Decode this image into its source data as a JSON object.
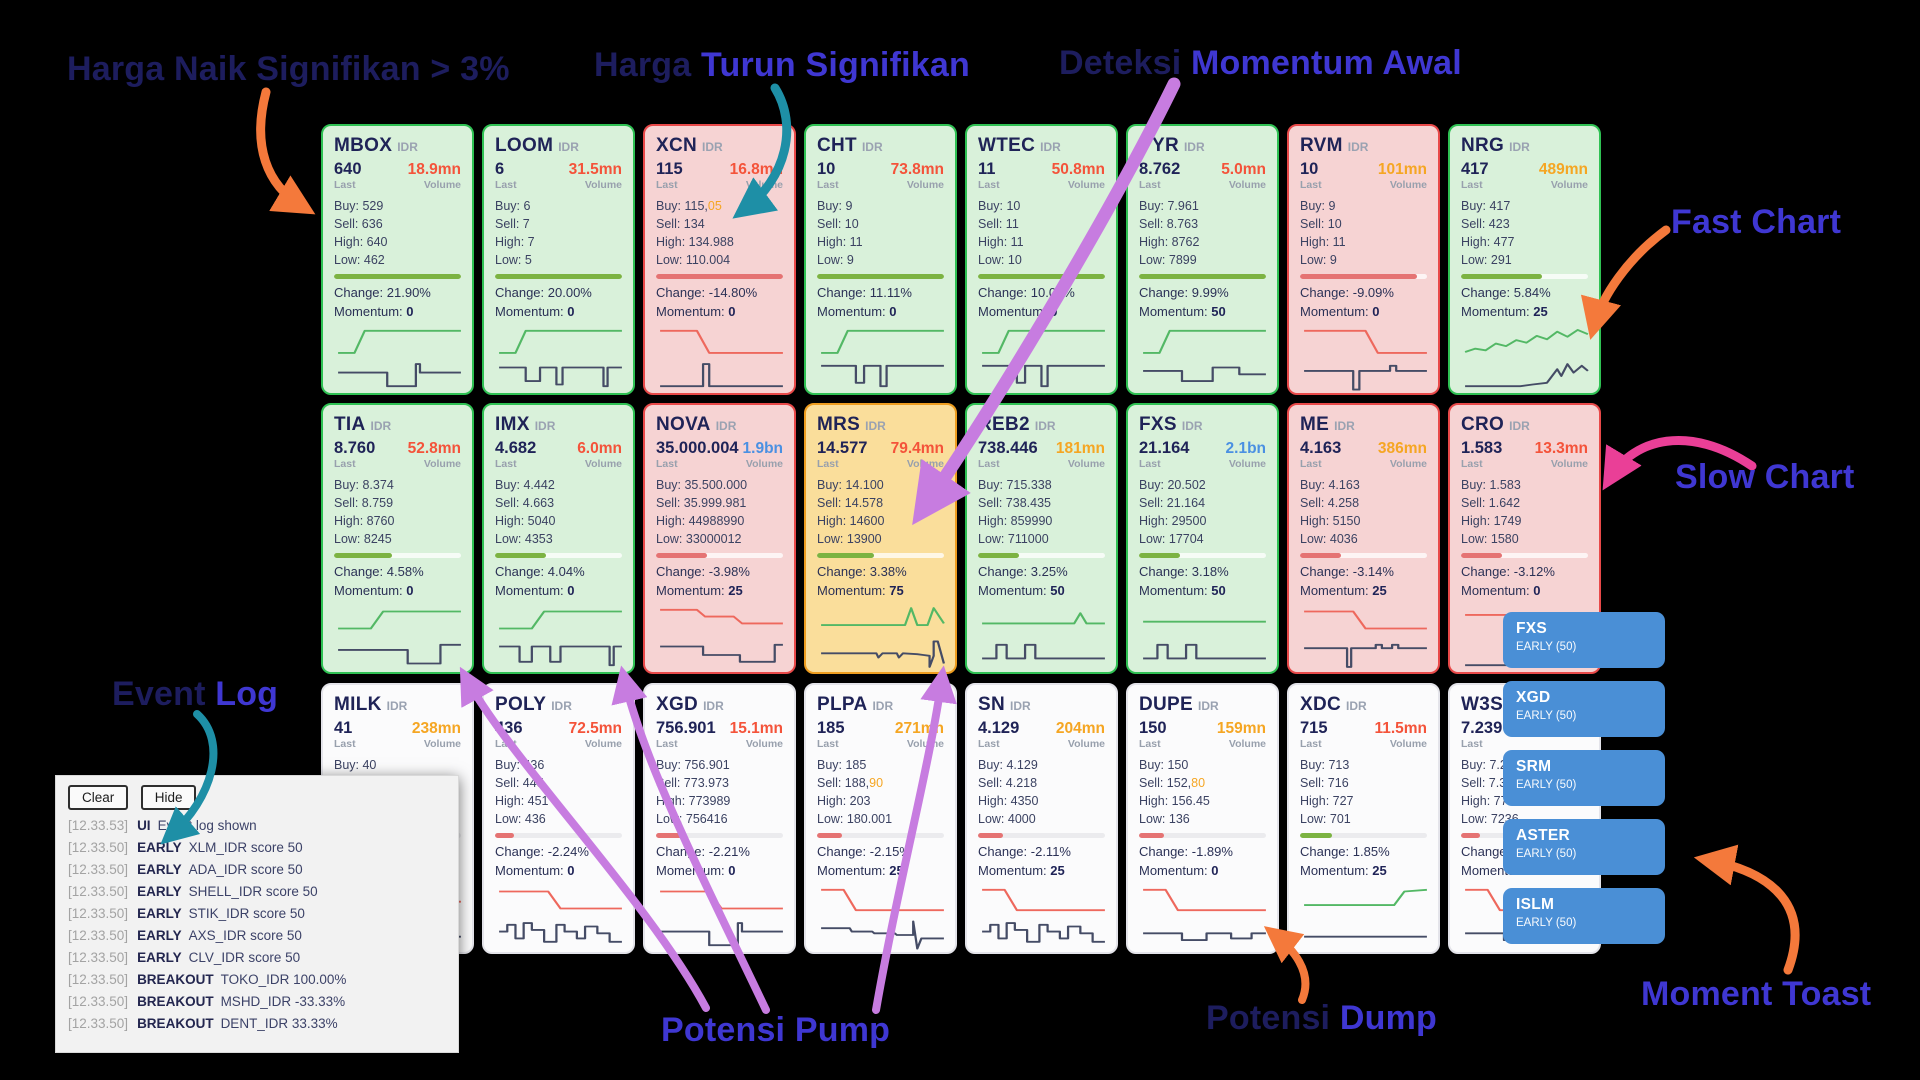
{
  "colors": {
    "background": "#000000",
    "card_green_border": "#2fc153",
    "card_green_bg": "#d9f1da",
    "card_red_border": "#e84949",
    "card_red_bg": "#f6d3d3",
    "card_yellow_border": "#ee9d1f",
    "card_yellow_bg": "#fade9b",
    "volume_red": "#f4533a",
    "volume_orange": "#f5a623",
    "volume_blue": "#4a90e2",
    "bar_green": "#7cb342",
    "bar_red": "#e57373",
    "toast_blue": "#4a8fd6",
    "ink_navy": "#1f2357",
    "annot_dark": "#1d1d5e",
    "annot_indigo": "#3f37d2"
  },
  "labels": {
    "currency": "IDR",
    "last": "Last",
    "volume": "Volume",
    "buy": "Buy:",
    "sell": "Sell:",
    "high": "High:",
    "low": "Low:",
    "momentum": "Momentum:"
  },
  "cards": [
    {
      "ticker": "MBOX",
      "last": "640",
      "volume": "18.9mn",
      "volume_color": "red",
      "buy": "529",
      "sell": "636",
      "high": "640",
      "low": "462",
      "bar_color": "green",
      "bar_pct": 100,
      "change": "Change: 21.90%",
      "momentum": "0",
      "tone": "green",
      "spark_top": "rampUp",
      "spark_bottom": "gStepDU"
    },
    {
      "ticker": "LOOM",
      "last": "6",
      "volume": "31.5mn",
      "volume_color": "red",
      "buy": "6",
      "sell": "7",
      "high": "7",
      "low": "5",
      "bar_color": "green",
      "bar_pct": 100,
      "change": "Change: 20.00%",
      "momentum": "0",
      "tone": "green",
      "spark_top": "rampUp",
      "spark_bottom": "gDoubleDip"
    },
    {
      "ticker": "XCN",
      "last": "115",
      "volume": "16.8mn",
      "volume_color": "red",
      "buy": "115,",
      "buy_suffix": "05",
      "sell": "134",
      "high": "134.988",
      "low": "110.004",
      "bar_color": "red",
      "bar_pct": 100,
      "change": "Change: -14.80%",
      "momentum": "0",
      "tone": "red",
      "spark_top": "dropHigh",
      "spark_bottom": "gSpikeUp"
    },
    {
      "ticker": "CHT",
      "last": "10",
      "volume": "73.8mn",
      "volume_color": "red",
      "buy": "9",
      "sell": "10",
      "high": "11",
      "low": "9",
      "bar_color": "green",
      "bar_pct": 100,
      "change": "Change: 11.11%",
      "momentum": "0",
      "tone": "green",
      "spark_top": "rampUp",
      "spark_bottom": "gNotches"
    },
    {
      "ticker": "WTEC",
      "last": "11",
      "volume": "50.8mn",
      "volume_color": "red",
      "buy": "10",
      "sell": "11",
      "high": "11",
      "low": "10",
      "bar_color": "green",
      "bar_pct": 100,
      "change": "Change: 10.00%",
      "momentum": "0",
      "tone": "green",
      "spark_top": "rampUp",
      "spark_bottom": "gNotches"
    },
    {
      "ticker": "PYR",
      "last": "8.762",
      "volume": "5.0mn",
      "volume_color": "red",
      "buy": "7.961",
      "sell": "8.763",
      "high": "8762",
      "low": "7899",
      "bar_color": "green",
      "bar_pct": 100,
      "change": "Change: 9.99%",
      "momentum": "50",
      "tone": "green",
      "spark_top": "rampUp",
      "spark_bottom": "gSteps"
    },
    {
      "ticker": "RVM",
      "last": "10",
      "volume": "101mn",
      "volume_color": "orange",
      "buy": "9",
      "sell": "10",
      "high": "11",
      "low": "9",
      "bar_color": "red",
      "bar_pct": 92,
      "change": "Change: -9.09%",
      "momentum": "0",
      "tone": "red",
      "spark_top": "dropLate",
      "spark_bottom": "gSpikeDown"
    },
    {
      "ticker": "NRG",
      "last": "417",
      "volume": "489mn",
      "volume_color": "orange",
      "buy": "417",
      "sell": "423",
      "high": "477",
      "low": "291",
      "bar_color": "green",
      "bar_pct": 64,
      "change": "Change: 5.84%",
      "momentum": "25",
      "tone": "green",
      "spark_top": "squiggle",
      "spark_bottom": "gRiseTail"
    },
    {
      "ticker": "TIA",
      "last": "8.760",
      "volume": "52.8mn",
      "volume_color": "red",
      "buy": "8.374",
      "sell": "8.759",
      "high": "8760",
      "low": "8245",
      "bar_color": "green",
      "bar_pct": 46,
      "change": "Change: 4.58%",
      "momentum": "0",
      "tone": "green",
      "spark_top": "rampMid",
      "spark_bottom": "gStepDownEnd"
    },
    {
      "ticker": "IMX",
      "last": "4.682",
      "volume": "6.0mn",
      "volume_color": "red",
      "buy": "4.442",
      "sell": "4.663",
      "high": "5040",
      "low": "4353",
      "bar_color": "green",
      "bar_pct": 40,
      "change": "Change: 4.04%",
      "momentum": "0",
      "tone": "green",
      "spark_top": "rampMid",
      "spark_bottom": "gPulse2"
    },
    {
      "ticker": "NOVA",
      "last": "35.000.004",
      "volume": "1.9bn",
      "volume_color": "blue",
      "buy": "35.500.000",
      "sell": "35.999.981",
      "high": "44988990",
      "low": "33000012",
      "bar_color": "red",
      "bar_pct": 40,
      "change": "Change: -3.98%",
      "momentum": "25",
      "tone": "red",
      "spark_top": "stairsDown",
      "spark_bottom": "gStairs"
    },
    {
      "ticker": "MRS",
      "last": "14.577",
      "volume": "79.4mn",
      "volume_color": "red",
      "buy": "14.100",
      "sell": "14.578",
      "high": "14600",
      "low": "13900",
      "bar_color": "green",
      "bar_pct": 45,
      "change": "Change: 3.38%",
      "momentum": "75",
      "tone": "yellow",
      "spark_top": "flatSpikes2",
      "spark_bottom": "gTicksSpike"
    },
    {
      "ticker": "REB2",
      "last": "738.446",
      "volume": "181mn",
      "volume_color": "orange",
      "buy": "715.338",
      "sell": "738.435",
      "high": "859990",
      "low": "711000",
      "bar_color": "green",
      "bar_pct": 32,
      "change": "Change: 3.25%",
      "momentum": "50",
      "tone": "green",
      "spark_top": "flatSpike1",
      "spark_bottom": "gPulses"
    },
    {
      "ticker": "FXS",
      "last": "21.164",
      "volume": "2.1bn",
      "volume_color": "blue",
      "buy": "20.502",
      "sell": "21.164",
      "high": "29500",
      "low": "17704",
      "bar_color": "green",
      "bar_pct": 32,
      "change": "Change: 3.18%",
      "momentum": "50",
      "tone": "green",
      "spark_top": "flat",
      "spark_bottom": "gPulses"
    },
    {
      "ticker": "ME",
      "last": "4.163",
      "volume": "386mn",
      "volume_color": "orange",
      "buy": "4.163",
      "sell": "4.258",
      "high": "5150",
      "low": "4036",
      "bar_color": "red",
      "bar_pct": 32,
      "change": "Change: -3.14%",
      "momentum": "25",
      "tone": "red",
      "spark_top": "dropMid",
      "spark_bottom": "gSpikeDnPulse"
    },
    {
      "ticker": "CRO",
      "last": "1.583",
      "volume": "13.3mn",
      "volume_color": "red",
      "buy": "1.583",
      "sell": "1.642",
      "high": "1749",
      "low": "1580",
      "bar_color": "red",
      "bar_pct": 32,
      "change": "Change: -3.12%",
      "momentum": "0",
      "tone": "red",
      "spark_top": "dropSmallEnd",
      "spark_bottom": "gRiseTail"
    },
    {
      "ticker": "MILK",
      "last": "41",
      "volume": "238mn",
      "volume_color": "orange",
      "buy": "40",
      "sell": "",
      "high": "",
      "low": "",
      "bar_color": "red",
      "bar_pct": 0,
      "change": "",
      "momentum": "",
      "tone": "white",
      "spark_top": "flat",
      "spark_bottom": "gFlat"
    },
    {
      "ticker": "POLY",
      "last": "436",
      "volume": "72.5mn",
      "volume_color": "red",
      "buy": "436",
      "sell": "445",
      "high": "451",
      "low": "436",
      "bar_color": "red",
      "bar_pct": 15,
      "change": "Change: -2.24%",
      "momentum": "0",
      "tone": "white",
      "spark_top": "dropMid",
      "spark_bottom": "gCity"
    },
    {
      "ticker": "XGD",
      "last": "756.901",
      "volume": "15.1mn",
      "volume_color": "red",
      "buy": "756.901",
      "sell": "773.973",
      "high": "773989",
      "low": "756416",
      "bar_color": "red",
      "bar_pct": 22,
      "change": "Change: -2.21%",
      "momentum": "0",
      "tone": "white",
      "spark_top": "dropMid",
      "spark_bottom": "gStepDU"
    },
    {
      "ticker": "PLPA",
      "last": "185",
      "volume": "271mn",
      "volume_color": "orange",
      "buy": "185",
      "sell": "188,",
      "sell_suffix": "90",
      "high": "203",
      "low": "180.001",
      "bar_color": "red",
      "bar_pct": 20,
      "change": "Change: -2.15%",
      "momentum": "25",
      "tone": "white",
      "spark_top": "dropEarly",
      "spark_bottom": "gDescTicksSpike"
    },
    {
      "ticker": "SN",
      "last": "4.129",
      "volume": "204mn",
      "volume_color": "orange",
      "buy": "4.129",
      "sell": "4.218",
      "high": "4350",
      "low": "4000",
      "bar_color": "red",
      "bar_pct": 20,
      "change": "Change: -2.11%",
      "momentum": "25",
      "tone": "white",
      "spark_top": "dropEarly",
      "spark_bottom": "gCity"
    },
    {
      "ticker": "DUPE",
      "last": "150",
      "volume": "159mn",
      "volume_color": "orange",
      "buy": "150",
      "sell": "152,",
      "sell_suffix": "80",
      "high": "156.45",
      "low": "136",
      "bar_color": "red",
      "bar_pct": 20,
      "change": "Change: -1.89%",
      "momentum": "0",
      "tone": "white",
      "spark_top": "dropEarly",
      "spark_bottom": "gShallow"
    },
    {
      "ticker": "XDC",
      "last": "715",
      "volume": "11.5mn",
      "volume_color": "red",
      "buy": "713",
      "sell": "716",
      "high": "727",
      "low": "701",
      "bar_color": "green",
      "bar_pct": 25,
      "change": "Change: 1.85%",
      "momentum": "25",
      "tone": "white",
      "spark_top": "riseEnd",
      "spark_bottom": "gFlat"
    },
    {
      "ticker": "W3S2",
      "last": "7.239",
      "volume": "",
      "volume_color": "red",
      "buy": "7.239",
      "sell": "7.363",
      "high": "7799",
      "low": "7236",
      "bar_color": "red",
      "bar_pct": 15,
      "change": "Change: -1.",
      "momentum": "",
      "tone": "white",
      "spark_top": "dropEarly",
      "spark_bottom": "gShallow"
    }
  ],
  "event_log": {
    "buttons": [
      "Clear",
      "Hide"
    ],
    "entries": [
      {
        "time": "[12.33.53]",
        "tag": "UI",
        "message": "Event log shown"
      },
      {
        "time": "[12.33.50]",
        "tag": "EARLY",
        "message": "XLM_IDR score 50"
      },
      {
        "time": "[12.33.50]",
        "tag": "EARLY",
        "message": "ADA_IDR score 50"
      },
      {
        "time": "[12.33.50]",
        "tag": "EARLY",
        "message": "SHELL_IDR score 50"
      },
      {
        "time": "[12.33.50]",
        "tag": "EARLY",
        "message": "STIK_IDR score 50"
      },
      {
        "time": "[12.33.50]",
        "tag": "EARLY",
        "message": "AXS_IDR score 50"
      },
      {
        "time": "[12.33.50]",
        "tag": "EARLY",
        "message": "CLV_IDR score 50"
      },
      {
        "time": "[12.33.50]",
        "tag": "BREAKOUT",
        "message": "TOKO_IDR 100.00%"
      },
      {
        "time": "[12.33.50]",
        "tag": "BREAKOUT",
        "message": "MSHD_IDR -33.33%"
      },
      {
        "time": "[12.33.50]",
        "tag": "BREAKOUT",
        "message": "DENT_IDR 33.33%"
      }
    ]
  },
  "toasts": [
    {
      "ticker": "FXS",
      "subtitle": "EARLY (50)"
    },
    {
      "ticker": "XGD",
      "subtitle": "EARLY (50)"
    },
    {
      "ticker": "SRM",
      "subtitle": "EARLY (50)"
    },
    {
      "ticker": "ASTER",
      "subtitle": "EARLY (50)"
    },
    {
      "ticker": "ISLM",
      "subtitle": "EARLY (50)"
    }
  ],
  "annotations": [
    {
      "id": "harga-naik",
      "segments": [
        {
          "text": "Harga Naik Signifikan > 3%",
          "color": "#1d1d5e"
        }
      ],
      "arrow_color": "#f4793b"
    },
    {
      "id": "harga-turun",
      "segments": [
        {
          "text": "Harga ",
          "color": "#1d1d5e"
        },
        {
          "text": "Turun Signifikan",
          "color": "#3f37d2"
        }
      ],
      "arrow_color": "#1e8fa6"
    },
    {
      "id": "deteksi",
      "segments": [
        {
          "text": "Deteksi ",
          "color": "#1d1d5e"
        },
        {
          "text": "Momentum Awal",
          "color": "#3f37d2"
        }
      ],
      "arrow_color": "#c77ce0"
    },
    {
      "id": "fast-chart",
      "segments": [
        {
          "text": "Fast Chart",
          "color": "#3f37d2"
        }
      ],
      "arrow_color": "#f4793b"
    },
    {
      "id": "slow-chart",
      "segments": [
        {
          "text": "Slow Chart",
          "color": "#3f37d2"
        }
      ],
      "arrow_color": "#ea3f97"
    },
    {
      "id": "event-log",
      "segments": [
        {
          "text": "Event ",
          "color": "#1d1d5e"
        },
        {
          "text": "Log",
          "color": "#3f37d2"
        }
      ],
      "arrow_color": "#1e8fa6"
    },
    {
      "id": "potensi-pump",
      "segments": [
        {
          "text": "Potensi Pump",
          "color": "#3f37d2"
        }
      ],
      "arrow_color": "#c77ce0"
    },
    {
      "id": "potensi-dump",
      "segments": [
        {
          "text": "Potensi ",
          "color": "#1d1d5e"
        },
        {
          "text": "Dump",
          "color": "#3f37d2"
        }
      ],
      "arrow_color": "#f4793b"
    },
    {
      "id": "moment-toast",
      "segments": [
        {
          "text": "Moment Toast",
          "color": "#3f37d2"
        }
      ],
      "arrow_color": "#f4793b"
    }
  ]
}
